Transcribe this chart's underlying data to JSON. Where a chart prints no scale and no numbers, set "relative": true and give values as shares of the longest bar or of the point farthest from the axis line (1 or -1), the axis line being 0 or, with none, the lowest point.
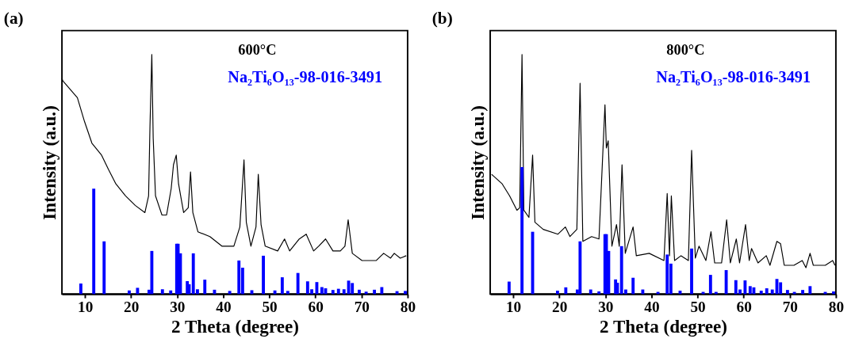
{
  "chart_data": [
    {
      "type": "line",
      "title": "(a)",
      "xlabel": "2 Theta (degree)",
      "ylabel": "Intensity (a.u.)",
      "annotations": [
        "600°C"
      ],
      "relative": true,
      "xlim": [
        5,
        80
      ],
      "xticks": [
        10,
        20,
        30,
        40,
        50,
        60,
        70,
        80
      ],
      "grid": false,
      "legend": false,
      "line_style": "solid",
      "marker": "none",
      "series": [
        {
          "color": "#000000",
          "x": [
            5.0,
            5.2,
            8.35,
            9.9,
            11.5,
            13.6,
            15.1,
            16.7,
            18.8,
            20.9,
            23.0,
            23.8,
            24.1,
            24.5,
            24.8,
            25.3,
            26.7,
            27.7,
            28.7,
            29.2,
            29.8,
            30.3,
            31.4,
            32.4,
            32.9,
            33.4,
            34.5,
            37.1,
            39.7,
            42.3,
            43.6,
            44.5,
            45.0,
            46.0,
            47.1,
            47.6,
            48.2,
            49.1,
            51.8,
            53.3,
            54.4,
            56.5,
            58.0,
            59.6,
            60.7,
            62.2,
            63.8,
            65.4,
            66.4,
            67.1,
            68.0,
            70.1,
            73.2,
            74.8,
            76.3,
            77.1,
            78.4,
            79.7
          ],
          "values": [
            0.9,
            0.89,
            0.82,
            0.72,
            0.63,
            0.58,
            0.52,
            0.46,
            0.41,
            0.37,
            0.34,
            0.41,
            0.7,
            1.0,
            0.65,
            0.41,
            0.33,
            0.33,
            0.44,
            0.54,
            0.58,
            0.46,
            0.34,
            0.36,
            0.51,
            0.34,
            0.26,
            0.24,
            0.2,
            0.2,
            0.28,
            0.56,
            0.3,
            0.2,
            0.28,
            0.5,
            0.29,
            0.2,
            0.18,
            0.23,
            0.18,
            0.23,
            0.25,
            0.18,
            0.2,
            0.23,
            0.18,
            0.18,
            0.2,
            0.31,
            0.17,
            0.14,
            0.14,
            0.17,
            0.15,
            0.17,
            0.15,
            0.16
          ]
        },
        {
          "type": "bar",
          "name": "Na₂Ti₆O₁₃-98-016-3491",
          "color": "#0000ff",
          "x": [
            9.1,
            11.9,
            14.15,
            19.6,
            21.4,
            23.9,
            24.5,
            26.8,
            28.6,
            29.9,
            30.2,
            30.7,
            32.2,
            32.6,
            33.5,
            34.4,
            36.0,
            38.1,
            41.4,
            43.4,
            44.2,
            46.2,
            48.7,
            51.2,
            52.8,
            54.0,
            56.2,
            58.3,
            59.2,
            60.3,
            61.4,
            62.2,
            63.8,
            65.0,
            66.2,
            67.2,
            68.0,
            69.5,
            71.0,
            72.8,
            74.4,
            77.7,
            79.5
          ],
          "values": [
            0.044,
            0.44,
            0.22,
            0.015,
            0.026,
            0.018,
            0.18,
            0.02,
            0.015,
            0.21,
            0.21,
            0.17,
            0.054,
            0.041,
            0.17,
            0.02,
            0.06,
            0.018,
            0.013,
            0.14,
            0.11,
            0.016,
            0.16,
            0.015,
            0.07,
            0.013,
            0.088,
            0.053,
            0.02,
            0.05,
            0.029,
            0.024,
            0.017,
            0.022,
            0.02,
            0.056,
            0.046,
            0.018,
            0.01,
            0.018,
            0.029,
            0.012,
            0.013
          ]
        }
      ]
    },
    {
      "type": "line",
      "title": "(b)",
      "xlabel": "2 Theta (degree)",
      "ylabel": "Intensity (a.u.)",
      "annotations": [
        "800°C"
      ],
      "relative": true,
      "xlim": [
        5,
        80
      ],
      "xticks": [
        10,
        20,
        30,
        40,
        50,
        60,
        70,
        80
      ],
      "grid": false,
      "legend": false,
      "line_style": "solid",
      "marker": "none",
      "series": [
        {
          "color": "#000000",
          "x": [
            5.3,
            7.6,
            9.2,
            10.8,
            11.4,
            11.9,
            12.3,
            13.4,
            14.2,
            14.7,
            16.5,
            19.7,
            21.3,
            22.3,
            23.8,
            24.5,
            25.1,
            27.0,
            28.6,
            29.9,
            30.2,
            30.6,
            31.4,
            32.4,
            33.0,
            33.6,
            34.3,
            36.0,
            36.7,
            39.5,
            42.7,
            43.4,
            43.9,
            44.3,
            45.0,
            46.4,
            48.0,
            48.7,
            49.5,
            50.3,
            51.8,
            52.9,
            53.7,
            55.2,
            56.3,
            57.1,
            58.4,
            59.1,
            60.4,
            61.2,
            61.7,
            63.1,
            64.9,
            65.7,
            67.2,
            68.0,
            68.8,
            70.9,
            72.7,
            73.5,
            74.4,
            75.1,
            77.7,
            79.3,
            79.8
          ],
          "values": [
            0.5,
            0.46,
            0.41,
            0.35,
            0.36,
            1.0,
            0.35,
            0.32,
            0.58,
            0.3,
            0.27,
            0.25,
            0.28,
            0.24,
            0.27,
            0.88,
            0.22,
            0.24,
            0.23,
            0.79,
            0.61,
            0.64,
            0.2,
            0.29,
            0.2,
            0.54,
            0.17,
            0.28,
            0.16,
            0.17,
            0.14,
            0.42,
            0.16,
            0.41,
            0.14,
            0.16,
            0.14,
            0.6,
            0.15,
            0.2,
            0.14,
            0.26,
            0.13,
            0.13,
            0.31,
            0.13,
            0.23,
            0.13,
            0.29,
            0.14,
            0.19,
            0.13,
            0.16,
            0.12,
            0.22,
            0.21,
            0.12,
            0.12,
            0.14,
            0.11,
            0.17,
            0.12,
            0.12,
            0.14,
            0.12
          ]
        },
        {
          "type": "bar",
          "name": "Na₂Ti₆O₁₃-98-016-3491",
          "color": "#0000ff",
          "x": [
            9.1,
            11.9,
            14.2,
            19.6,
            21.4,
            23.9,
            24.5,
            26.8,
            28.6,
            29.9,
            30.2,
            30.7,
            32.2,
            32.6,
            33.5,
            34.4,
            36.0,
            38.1,
            41.4,
            43.4,
            44.2,
            46.2,
            48.7,
            51.2,
            52.8,
            54.0,
            56.2,
            58.3,
            59.2,
            60.3,
            61.4,
            62.2,
            63.8,
            65.0,
            66.2,
            67.2,
            68.0,
            69.5,
            71.0,
            72.8,
            74.4,
            77.7,
            79.5
          ],
          "values": [
            0.052,
            0.53,
            0.26,
            0.014,
            0.028,
            0.019,
            0.22,
            0.019,
            0.011,
            0.25,
            0.25,
            0.18,
            0.061,
            0.047,
            0.2,
            0.019,
            0.068,
            0.019,
            0.009,
            0.165,
            0.127,
            0.014,
            0.19,
            0.009,
            0.08,
            0.009,
            0.1,
            0.058,
            0.019,
            0.057,
            0.033,
            0.028,
            0.014,
            0.024,
            0.019,
            0.063,
            0.049,
            0.017,
            0.009,
            0.017,
            0.033,
            0.009,
            0.011
          ]
        }
      ]
    }
  ]
}
